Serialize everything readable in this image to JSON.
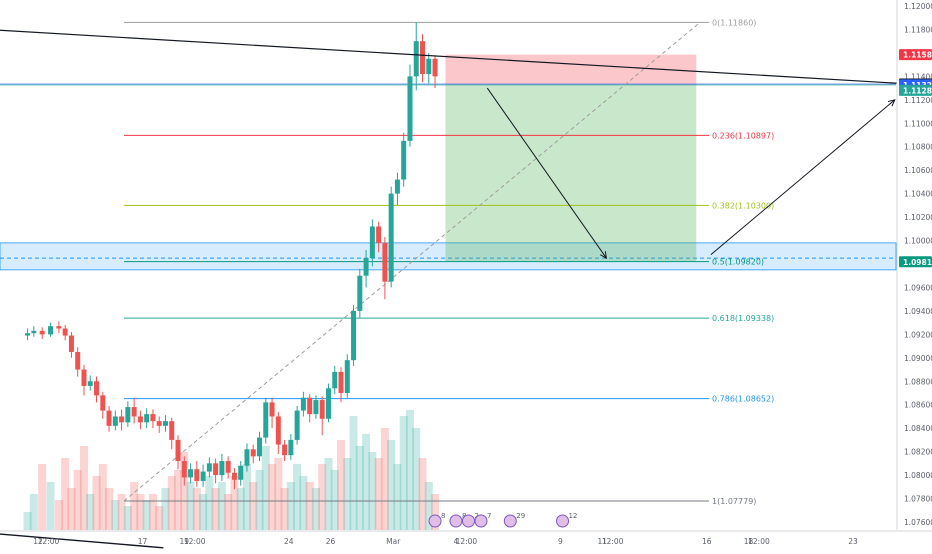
{
  "chart_data": {
    "type": "candlestick",
    "title": "",
    "xlabel": "",
    "ylabel": "",
    "ylim": [
      1.0746,
      1.1205
    ],
    "y_ticks": [
      "1.12000",
      "1.11800",
      "1.11600",
      "1.11400",
      "1.11200",
      "1.11000",
      "1.10800",
      "1.10600",
      "1.10400",
      "1.10200",
      "1.10000",
      "1.09800",
      "1.09600",
      "1.09400",
      "1.09200",
      "1.09000",
      "1.08800",
      "1.08600",
      "1.08400",
      "1.08200",
      "1.08000",
      "1.07800",
      "1.07600"
    ],
    "x_ticks": [
      {
        "label": "12",
        "day": 12.0
      },
      {
        "label": "12:00",
        "day": 12.5
      },
      {
        "label": "17",
        "day": 17.0
      },
      {
        "label": "19",
        "day": 19.0
      },
      {
        "label": "12:00",
        "day": 19.5
      },
      {
        "label": "24",
        "day": 24.0
      },
      {
        "label": "26",
        "day": 26.0
      },
      {
        "label": "Mar",
        "day": 29.0
      },
      {
        "label": "4",
        "day": 32.0
      },
      {
        "label": "12:00",
        "day": 32.5
      },
      {
        "label": "9",
        "day": 37.0
      },
      {
        "label": "11",
        "day": 39.0
      },
      {
        "label": "12:00",
        "day": 39.5
      },
      {
        "label": "16",
        "day": 44.0
      },
      {
        "label": "18",
        "day": 46.0
      },
      {
        "label": "12:00",
        "day": 46.5
      },
      {
        "label": "23",
        "day": 51.0
      }
    ],
    "x_axis": "days from Feb 1 (Feb 29 = Mar 1)",
    "grid": false,
    "candles": [
      [
        11.5,
        1.0919,
        1.0921,
        1.0915,
        1.0925
      ],
      [
        11.8,
        1.0921,
        1.0923,
        1.0918,
        1.0927
      ],
      [
        12.2,
        1.0923,
        1.092,
        1.0916,
        1.0926
      ],
      [
        12.6,
        1.092,
        1.0927,
        1.0918,
        1.093
      ],
      [
        13.0,
        1.0927,
        1.0925,
        1.0921,
        1.0931
      ],
      [
        13.3,
        1.0925,
        1.0919,
        1.0915,
        1.0928
      ],
      [
        13.6,
        1.0919,
        1.0905,
        1.09,
        1.0922
      ],
      [
        13.9,
        1.0905,
        1.089,
        1.0884,
        1.0909
      ],
      [
        14.2,
        1.089,
        1.0876,
        1.0868,
        1.0894
      ],
      [
        14.5,
        1.0876,
        1.088,
        1.0872,
        1.0885
      ],
      [
        14.8,
        1.088,
        1.0868,
        1.0862,
        1.0884
      ],
      [
        15.1,
        1.0868,
        1.0855,
        1.0848,
        1.0871
      ],
      [
        15.4,
        1.0855,
        1.0842,
        1.0837,
        1.0859
      ],
      [
        15.7,
        1.0842,
        1.085,
        1.0838,
        1.0855
      ],
      [
        16.0,
        1.085,
        1.0845,
        1.0838,
        1.0856
      ],
      [
        16.3,
        1.0845,
        1.0858,
        1.0841,
        1.0863
      ],
      [
        16.6,
        1.0858,
        1.085,
        1.0844,
        1.0866
      ],
      [
        16.9,
        1.085,
        1.0845,
        1.0839,
        1.0855
      ],
      [
        17.2,
        1.0845,
        1.0852,
        1.084,
        1.0857
      ],
      [
        17.5,
        1.0852,
        1.0846,
        1.084,
        1.0856
      ],
      [
        17.8,
        1.0846,
        1.0842,
        1.0836,
        1.085
      ],
      [
        18.1,
        1.0842,
        1.0846,
        1.0837,
        1.0851
      ],
      [
        18.4,
        1.0846,
        1.083,
        1.0822,
        1.0849
      ],
      [
        18.7,
        1.083,
        1.0812,
        1.0805,
        1.0834
      ],
      [
        19.0,
        1.0812,
        1.0798,
        1.0791,
        1.0816
      ],
      [
        19.3,
        1.0798,
        1.0805,
        1.0793,
        1.081
      ],
      [
        19.6,
        1.0805,
        1.0795,
        1.079,
        1.0812
      ],
      [
        19.9,
        1.0795,
        1.0803,
        1.079,
        1.0809
      ],
      [
        20.2,
        1.0803,
        1.081,
        1.0798,
        1.0815
      ],
      [
        20.5,
        1.081,
        1.08,
        1.0793,
        1.0814
      ],
      [
        20.8,
        1.08,
        1.0812,
        1.0795,
        1.0818
      ],
      [
        21.1,
        1.0812,
        1.0802,
        1.0797,
        1.0816
      ],
      [
        21.4,
        1.0802,
        1.0796,
        1.0788,
        1.0806
      ],
      [
        21.7,
        1.0796,
        1.0808,
        1.0791,
        1.0812
      ],
      [
        22.0,
        1.0808,
        1.0822,
        1.0803,
        1.0827
      ],
      [
        22.3,
        1.0822,
        1.0816,
        1.081,
        1.0826
      ],
      [
        22.6,
        1.0816,
        1.0832,
        1.0812,
        1.0837
      ],
      [
        22.9,
        1.0832,
        1.0862,
        1.0827,
        1.0866
      ],
      [
        23.2,
        1.0862,
        1.085,
        1.084,
        1.0866
      ],
      [
        23.5,
        1.085,
        1.0826,
        1.0818,
        1.0854
      ],
      [
        23.8,
        1.0826,
        1.0817,
        1.0812,
        1.083
      ],
      [
        24.1,
        1.0817,
        1.083,
        1.0813,
        1.0835
      ],
      [
        24.4,
        1.083,
        1.0855,
        1.0826,
        1.0859
      ],
      [
        24.7,
        1.0855,
        1.0866,
        1.085,
        1.0871
      ],
      [
        25.0,
        1.0866,
        1.0852,
        1.0845,
        1.0869
      ],
      [
        25.3,
        1.0852,
        1.0864,
        1.0848,
        1.0868
      ],
      [
        25.6,
        1.0864,
        1.0848,
        1.0834,
        1.0867
      ],
      [
        25.9,
        1.0848,
        1.0874,
        1.0845,
        1.0878
      ],
      [
        26.2,
        1.0874,
        1.0888,
        1.0869,
        1.0893
      ],
      [
        26.5,
        1.0888,
        1.087,
        1.0862,
        1.0892
      ],
      [
        26.8,
        1.087,
        1.0898,
        1.0866,
        1.0903
      ],
      [
        27.1,
        1.0898,
        1.094,
        1.0893,
        1.0945
      ],
      [
        27.4,
        1.094,
        1.097,
        1.0934,
        1.0976
      ],
      [
        27.7,
        1.097,
        1.0985,
        1.096,
        1.0992
      ],
      [
        28.0,
        1.0985,
        1.1012,
        1.0978,
        1.1018
      ],
      [
        28.3,
        1.1012,
        1.0998,
        1.099,
        1.1016
      ],
      [
        28.6,
        1.0998,
        1.0965,
        1.095,
        1.1003
      ],
      [
        28.9,
        1.0965,
        1.104,
        1.096,
        1.1046
      ],
      [
        29.2,
        1.104,
        1.1052,
        1.103,
        1.1058
      ],
      [
        29.5,
        1.1052,
        1.1085,
        1.1046,
        1.1092
      ],
      [
        29.8,
        1.1085,
        1.114,
        1.108,
        1.115
      ],
      [
        30.1,
        1.114,
        1.117,
        1.1128,
        1.1186
      ],
      [
        30.4,
        1.117,
        1.1142,
        1.1135,
        1.1176
      ],
      [
        30.7,
        1.1142,
        1.1155,
        1.1134,
        1.116
      ],
      [
        31.0,
        1.1155,
        1.114,
        1.113,
        1.1158
      ]
    ],
    "volume": [
      [
        11.5,
        0.15
      ],
      [
        11.8,
        0.3
      ],
      [
        12.2,
        0.55
      ],
      [
        12.6,
        0.4
      ],
      [
        13.0,
        0.25
      ],
      [
        13.3,
        0.6
      ],
      [
        13.6,
        0.35
      ],
      [
        13.9,
        0.5
      ],
      [
        14.2,
        0.7
      ],
      [
        14.5,
        0.3
      ],
      [
        14.8,
        0.45
      ],
      [
        15.1,
        0.55
      ],
      [
        15.4,
        0.35
      ],
      [
        15.7,
        0.25
      ],
      [
        16.0,
        0.3
      ],
      [
        16.3,
        0.2
      ],
      [
        16.6,
        0.4
      ],
      [
        16.9,
        0.3
      ],
      [
        17.2,
        0.25
      ],
      [
        17.5,
        0.3
      ],
      [
        17.8,
        0.2
      ],
      [
        18.1,
        0.35
      ],
      [
        18.4,
        0.45
      ],
      [
        18.7,
        0.5
      ],
      [
        19.0,
        0.65
      ],
      [
        19.3,
        0.4
      ],
      [
        19.6,
        0.35
      ],
      [
        19.9,
        0.3
      ],
      [
        20.2,
        0.45
      ],
      [
        20.5,
        0.35
      ],
      [
        20.8,
        0.4
      ],
      [
        21.1,
        0.3
      ],
      [
        21.4,
        0.45
      ],
      [
        21.7,
        0.35
      ],
      [
        22.0,
        0.55
      ],
      [
        22.3,
        0.4
      ],
      [
        22.6,
        0.5
      ],
      [
        22.9,
        0.7
      ],
      [
        23.2,
        0.55
      ],
      [
        23.5,
        0.6
      ],
      [
        23.8,
        0.35
      ],
      [
        24.1,
        0.4
      ],
      [
        24.4,
        0.55
      ],
      [
        24.7,
        0.45
      ],
      [
        25.0,
        0.4
      ],
      [
        25.3,
        0.35
      ],
      [
        25.6,
        0.55
      ],
      [
        25.9,
        0.6
      ],
      [
        26.2,
        0.5
      ],
      [
        26.5,
        0.75
      ],
      [
        26.8,
        0.6
      ],
      [
        27.1,
        0.95
      ],
      [
        27.4,
        0.7
      ],
      [
        27.7,
        0.8
      ],
      [
        28.0,
        0.65
      ],
      [
        28.3,
        0.6
      ],
      [
        28.6,
        0.85
      ],
      [
        28.9,
        0.75
      ],
      [
        29.2,
        0.55
      ],
      [
        29.5,
        0.95
      ],
      [
        29.8,
        1.0
      ],
      [
        30.1,
        0.85
      ],
      [
        30.4,
        0.6
      ],
      [
        30.7,
        0.4
      ],
      [
        31.0,
        0.3
      ]
    ],
    "fibonacci": {
      "from": {
        "day": 17.0,
        "price": 1.07779
      },
      "to": {
        "day": 31.0,
        "price": 1.1186
      },
      "levels": [
        {
          "label": "0(1.11860)",
          "price": 1.1186,
          "color": "#9e9e9e"
        },
        {
          "label": "0.236(1.10897)",
          "price": 1.10897,
          "color": "#f23645"
        },
        {
          "label": "0.382(1.10300)",
          "price": 1.103,
          "color": "#9fc31a"
        },
        {
          "label": "0.5(1.09820)",
          "price": 1.0982,
          "color": "#089981"
        },
        {
          "label": "0.618(1.09338)",
          "price": 1.09338,
          "color": "#26a69a"
        },
        {
          "label": "0.786(1.08652)",
          "price": 1.08652,
          "color": "#2196f3"
        },
        {
          "label": "1(1.07779)",
          "price": 1.07779,
          "color": "#787b86"
        }
      ]
    },
    "short_position": {
      "entry": 1.11327,
      "stop": 1.11585,
      "target": 1.09819,
      "start_day": 31.5,
      "end_day": 43.5
    },
    "support_zone": {
      "low": 1.0975,
      "high": 1.0998
    },
    "dashed_level": 1.0985,
    "trendline_upper": [
      {
        "day": 0,
        "price": 1.119
      },
      {
        "day": 54.5,
        "price": 1.11327
      }
    ],
    "trendline_lower": [
      {
        "day": 0,
        "price": 1.0765
      },
      {
        "day": 18.0,
        "price": 1.0738
      }
    ],
    "forecast_arrows": [
      {
        "from": {
          "day": 33.5,
          "price": 1.113
        },
        "to": {
          "day": 39.2,
          "price": 1.0985
        }
      },
      {
        "from": {
          "day": 44.2,
          "price": 1.0988
        },
        "to": {
          "day": 53.0,
          "price": 1.112
        }
      }
    ],
    "price_badges": [
      {
        "label": "1.11585",
        "price": 1.11585,
        "color": "#f23645"
      },
      {
        "label": "1.11335",
        "price": 1.11335,
        "color": "#131722"
      },
      {
        "label": "1.11327",
        "price": 1.11327,
        "color": "#2962ff"
      },
      {
        "label": "1.11280",
        "price": 1.1128,
        "color": "#26a69a"
      },
      {
        "label": "1.09819",
        "price": 1.09819,
        "color": "#089981"
      }
    ],
    "event_markers": [
      {
        "day": 31.0,
        "text": "8"
      },
      {
        "day": 32.0,
        "text": "8"
      },
      {
        "day": 32.6,
        "text": "2"
      },
      {
        "day": 33.2,
        "text": "7"
      },
      {
        "day": 34.6,
        "text": "29"
      },
      {
        "day": 37.1,
        "text": "12"
      }
    ]
  }
}
